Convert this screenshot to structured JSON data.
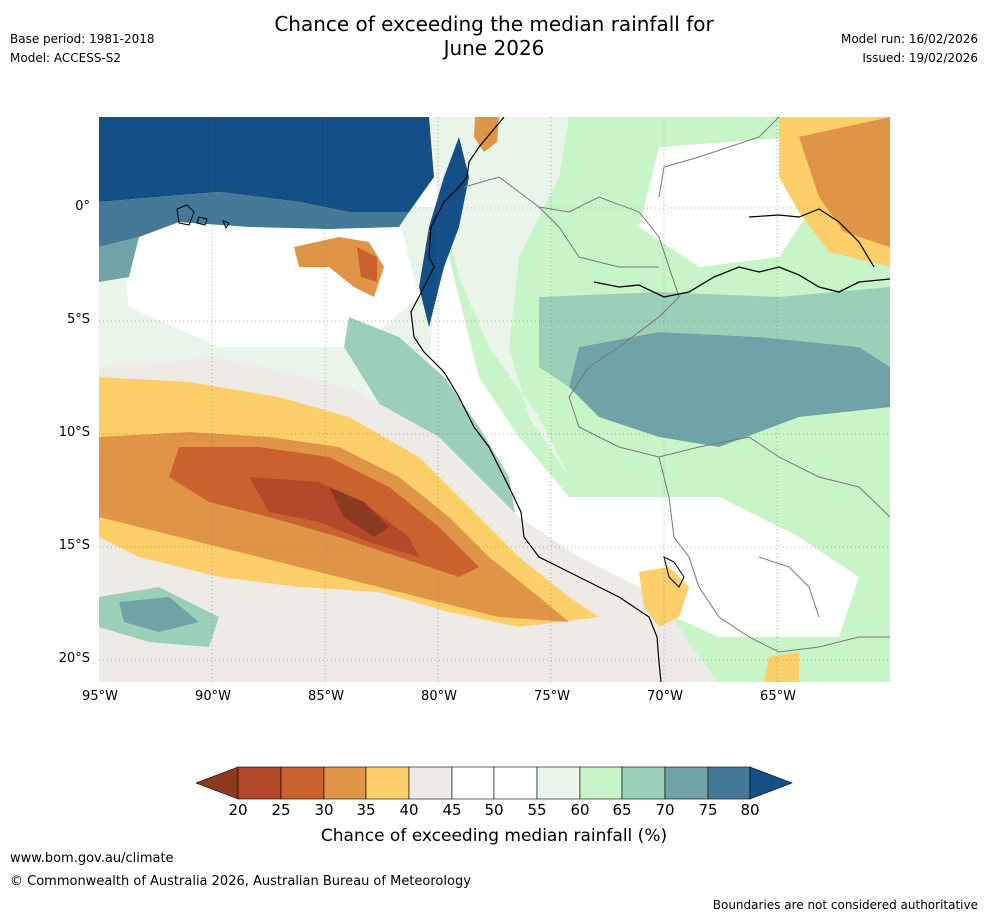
{
  "header": {
    "title_line1": "Chance of exceeding the median rainfall for",
    "title_line2": "June 2026",
    "base_period": "Base period: 1981-2018",
    "model": "Model: ACCESS-S2",
    "model_run": "Model run: 16/02/2026",
    "issued": "Issued: 19/02/2026"
  },
  "map": {
    "region": "Western South America",
    "lon_range": [
      -95,
      -60
    ],
    "lat_range": [
      -21,
      4
    ],
    "lat_ticks": [
      "0°",
      "5°S",
      "10°S",
      "15°S",
      "20°S"
    ],
    "lon_ticks": [
      "95°W",
      "90°W",
      "85°W",
      "80°W",
      "75°W",
      "70°W",
      "65°W"
    ]
  },
  "colorbar": {
    "title": "Chance of exceeding median rainfall (%)",
    "labels": [
      "20",
      "25",
      "30",
      "35",
      "40",
      "45",
      "50",
      "55",
      "60",
      "65",
      "70",
      "75",
      "80"
    ],
    "colors": {
      "below_20": "#8c3a1f",
      "b20_25": "#b3492a",
      "b25_30": "#c9622f",
      "b30_35": "#e09445",
      "b35_40": "#fccf6a",
      "b40_45": "#eeebe6",
      "b45_50": "#ffffff",
      "b50_55": "#ffffff",
      "b55_60": "#eaf5ea",
      "b60_65": "#c8f5c8",
      "b65_70": "#9ccfb8",
      "b70_75": "#6fa3a8",
      "b75_80": "#447a98",
      "above_80": "#154f88"
    }
  },
  "footer": {
    "website": "www.bom.gov.au/climate",
    "copyright": "© Commonwealth of Australia 2026, Australian Bureau of Meteorology",
    "disclaimer": "Boundaries are not considered authoritative"
  }
}
